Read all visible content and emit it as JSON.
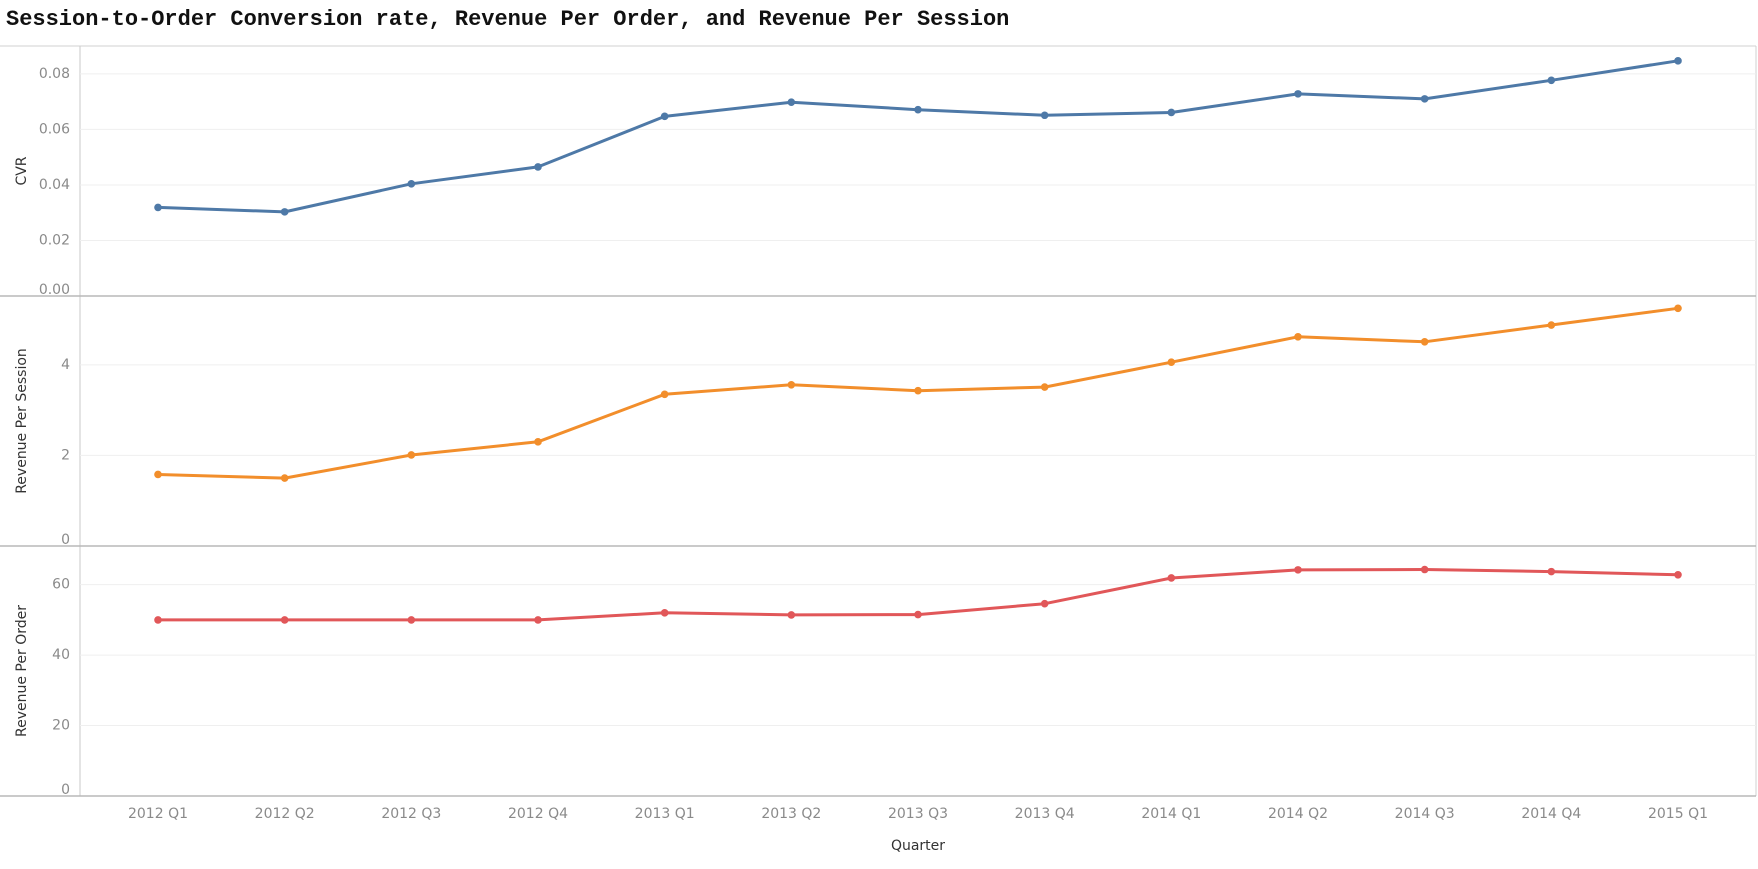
{
  "title": "Session-to-Order Conversion rate, Revenue Per Order, and Revenue Per Session",
  "chart_data": {
    "type": "line",
    "title": "Session-to-Order Conversion rate, Revenue Per Order, and Revenue Per Session",
    "xlabel": "Quarter",
    "categories": [
      "2012 Q1",
      "2012 Q2",
      "2012 Q3",
      "2012 Q4",
      "2013 Q1",
      "2013 Q2",
      "2013 Q3",
      "2013 Q4",
      "2014 Q1",
      "2014 Q2",
      "2014 Q3",
      "2014 Q4",
      "2015 Q1"
    ],
    "grid": true,
    "panels": [
      {
        "ylabel": "CVR",
        "color": "#4e79a7",
        "ylim": [
          0,
          0.085
        ],
        "yticks": [
          0.0,
          0.02,
          0.04,
          0.06,
          0.08
        ],
        "tick_labels": [
          "0.00",
          "0.02",
          "0.04",
          "0.06",
          "0.08"
        ],
        "values": [
          0.0319,
          0.0303,
          0.0404,
          0.0465,
          0.0647,
          0.0698,
          0.0671,
          0.0651,
          0.0661,
          0.0728,
          0.071,
          0.0777,
          0.0847
        ]
      },
      {
        "ylabel": "Revenue Per Session",
        "color": "#f28e2b",
        "ylim": [
          0,
          5.3
        ],
        "yticks": [
          0,
          2,
          4
        ],
        "tick_labels": [
          "0",
          "2",
          "4"
        ],
        "values": [
          1.58,
          1.5,
          2.01,
          2.3,
          3.35,
          3.56,
          3.43,
          3.51,
          4.06,
          4.62,
          4.51,
          4.88,
          5.25
        ]
      },
      {
        "ylabel": "Revenue Per Order",
        "color": "#e15759",
        "ylim": [
          0,
          67
        ],
        "yticks": [
          0,
          20,
          40,
          60
        ],
        "tick_labels": [
          "0",
          "20",
          "40",
          "60"
        ],
        "values": [
          49.99,
          49.99,
          49.99,
          49.99,
          52.0,
          51.4,
          51.5,
          54.6,
          61.9,
          64.2,
          64.3,
          63.7,
          62.8
        ]
      }
    ]
  }
}
